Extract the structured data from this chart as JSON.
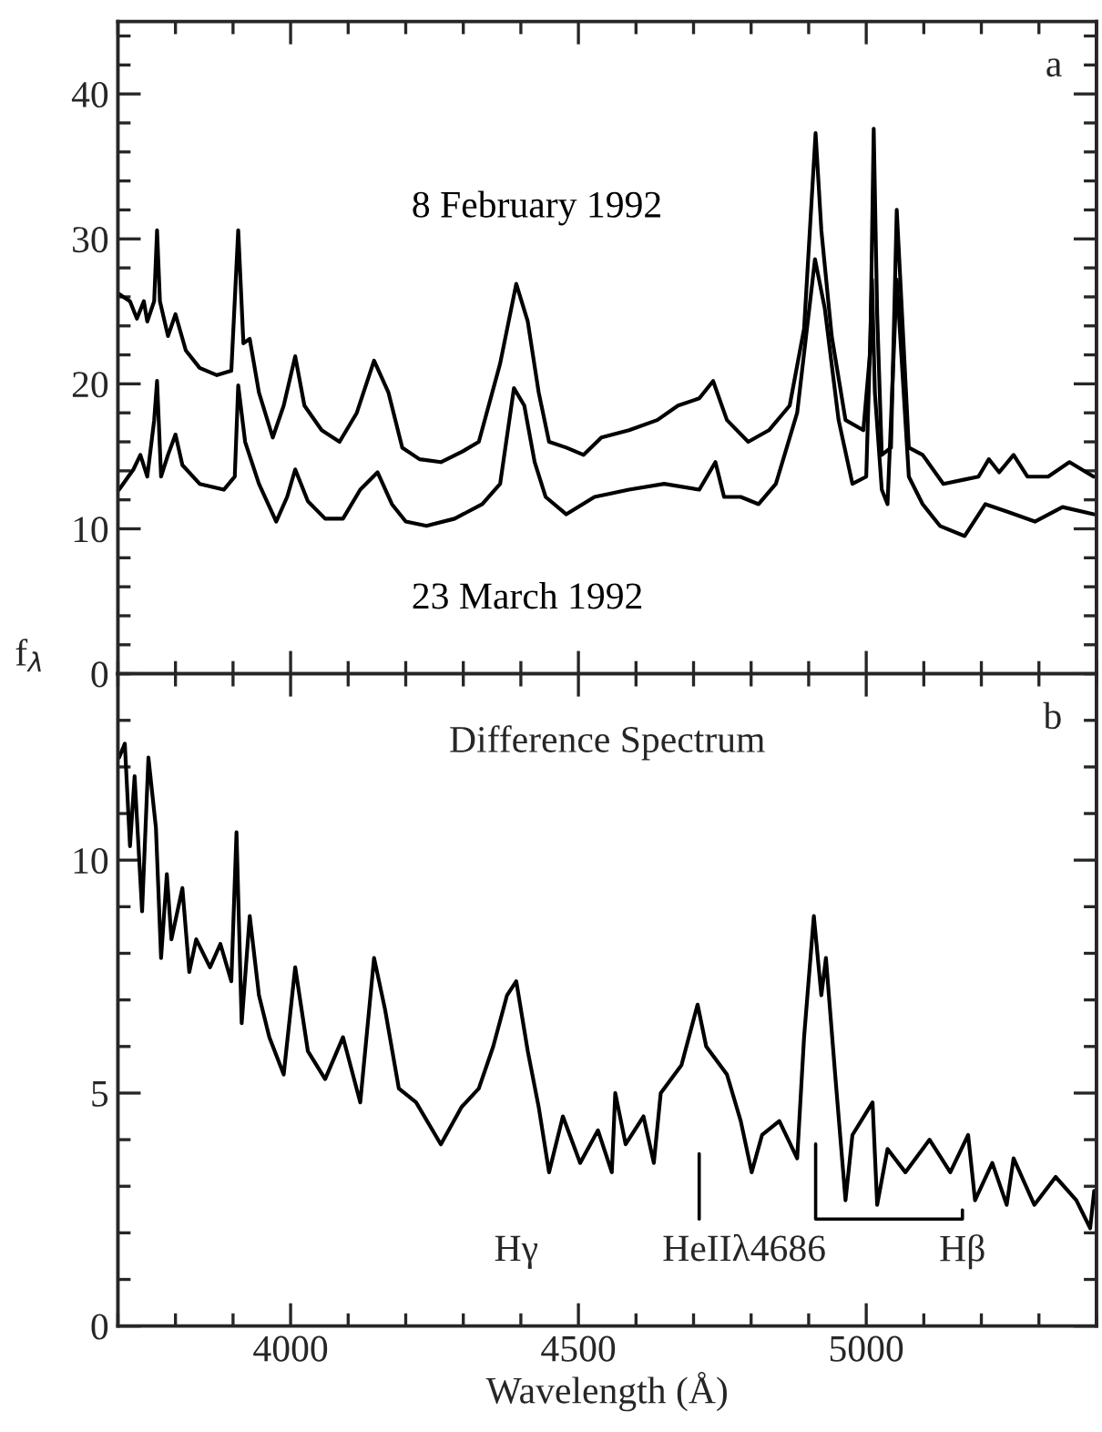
{
  "chart_data": [
    {
      "type": "line",
      "ylabel": "f$_{λ}$",
      "annotations": [
        "a"
      ],
      "tick_labels": "y",
      "xlim": [
        3700,
        5400
      ],
      "xticks": [
        {
          "value": 3700,
          "label": null
        },
        {
          "value": 3800,
          "label": null
        },
        {
          "value": 3900,
          "label": null
        },
        4000,
        {
          "value": 4100,
          "label": null
        },
        {
          "value": 4200,
          "label": null
        },
        {
          "value": 4300,
          "label": null
        },
        {
          "value": 4400,
          "label": null
        },
        4500,
        {
          "value": 4600,
          "label": null
        },
        {
          "value": 4700,
          "label": null
        },
        {
          "value": 4800,
          "label": null
        },
        {
          "value": 4900,
          "label": null
        },
        5000,
        {
          "value": 5100,
          "label": null
        },
        {
          "value": 5200,
          "label": null
        },
        {
          "value": 5300,
          "label": null
        },
        {
          "value": 5400,
          "label": null
        }
      ],
      "ylim": [
        0,
        45
      ],
      "yticks": [
        0,
        {
          "value": 2,
          "label": null
        },
        {
          "value": 4,
          "label": null
        },
        {
          "value": 6,
          "label": null
        },
        {
          "value": 8,
          "label": null
        },
        10,
        {
          "value": 12,
          "label": null
        },
        {
          "value": 14,
          "label": null
        },
        {
          "value": 16,
          "label": null
        },
        {
          "value": 18,
          "label": null
        },
        20,
        {
          "value": 22,
          "label": null
        },
        {
          "value": 24,
          "label": null
        },
        {
          "value": 26,
          "label": null
        },
        {
          "value": 28,
          "label": null
        },
        30,
        {
          "value": 32,
          "label": null
        },
        {
          "value": 34,
          "label": null
        },
        {
          "value": 36,
          "label": null
        },
        {
          "value": 38,
          "label": null
        },
        40,
        {
          "value": 42,
          "label": null
        },
        {
          "value": 44,
          "label": null
        }
      ],
      "line_style": "solid",
      "marker": "none",
      "series": [
        {
          "name": "8 February 1992",
          "color": "#000000",
          "x": [
            3702,
            3721,
            3733,
            3745,
            3751,
            3763,
            3768,
            3773,
            3787,
            3800,
            3818,
            3842,
            3872,
            3897,
            3909,
            3918,
            3929,
            3945,
            3969,
            3988,
            4008,
            4024,
            4054,
            4085,
            4115,
            4145,
            4170,
            4194,
            4224,
            4261,
            4297,
            4327,
            4364,
            4392,
            4412,
            4431,
            4449,
            4479,
            4509,
            4540,
            4588,
            4637,
            4673,
            4710,
            4734,
            4758,
            4795,
            4831,
            4867,
            4892,
            4912,
            4922,
            4940,
            4964,
            4995,
            5007,
            5013,
            5019,
            5027,
            5043,
            5053,
            5059,
            5067,
            5074,
            5098,
            5134,
            5171,
            5195,
            5213,
            5231,
            5256,
            5280,
            5316,
            5353,
            5395
          ],
          "values": [
            26.2,
            25.7,
            24.5,
            25.7,
            24.3,
            25.7,
            30.6,
            25.7,
            23.3,
            24.8,
            22.3,
            21.1,
            20.6,
            20.9,
            30.6,
            22.8,
            23.1,
            19.4,
            16.3,
            18.5,
            21.9,
            18.5,
            16.8,
            16.0,
            18.0,
            21.6,
            19.4,
            15.6,
            14.8,
            14.6,
            15.3,
            16.0,
            21.4,
            26.9,
            24.3,
            19.4,
            16.0,
            15.6,
            15.1,
            16.3,
            16.8,
            17.5,
            18.5,
            19.0,
            20.2,
            17.5,
            16.0,
            16.8,
            18.5,
            23.8,
            37.3,
            30.6,
            23.3,
            17.5,
            16.8,
            22.3,
            37.6,
            24.8,
            15.1,
            15.6,
            32.0,
            null,
            null,
            15.6,
            15.1,
            13.1,
            13.4,
            13.6,
            14.8,
            13.9,
            15.1,
            13.6,
            13.6,
            14.6,
            13.6
          ]
        },
        {
          "name": "23 March 1992",
          "color": "#000000",
          "x": [
            3702,
            3727,
            3739,
            3751,
            3763,
            3768,
            3775,
            3787,
            3800,
            3812,
            3842,
            3884,
            3903,
            3909,
            3921,
            3945,
            3975,
            3994,
            4008,
            4030,
            4060,
            4091,
            4121,
            4151,
            4176,
            4200,
            4236,
            4285,
            4333,
            4364,
            4388,
            4406,
            4424,
            4443,
            4479,
            4528,
            4588,
            4649,
            4710,
            4738,
            4753,
            4782,
            4813,
            4843,
            4880,
            4911,
            4928,
            4952,
            4976,
            5000,
            5010,
            5015,
            5027,
            5037,
            5053,
            5059,
            5067,
            5074,
            5098,
            5128,
            5171,
            5207,
            5244,
            5293,
            5341,
            5395
          ],
          "values": [
            12.7,
            14.1,
            15.1,
            13.6,
            17.5,
            20.2,
            13.6,
            15.1,
            16.5,
            14.4,
            13.1,
            12.7,
            13.6,
            19.9,
            16.0,
            13.1,
            10.5,
            12.2,
            14.1,
            11.9,
            10.7,
            10.7,
            12.7,
            13.9,
            11.7,
            10.5,
            10.2,
            10.7,
            11.7,
            13.1,
            19.7,
            18.5,
            14.6,
            12.2,
            11.0,
            12.2,
            12.7,
            13.1,
            12.7,
            14.6,
            12.2,
            12.2,
            11.7,
            13.1,
            18.0,
            28.6,
            25.2,
            17.5,
            13.1,
            13.6,
            27.2,
            19.4,
            12.7,
            11.7,
            27.2,
            null,
            null,
            13.6,
            11.7,
            10.2,
            9.5,
            11.7,
            11.2,
            10.5,
            11.5,
            11.0
          ]
        }
      ]
    },
    {
      "type": "line",
      "title": "Difference Spectrum",
      "xlabel": "Wavelength (Å)",
      "annotations": [
        "b",
        "Hγ",
        "HeIIλ4686",
        "Hβ"
      ],
      "xlim": [
        3700,
        5400
      ],
      "xticks": [
        {
          "value": 3700,
          "label": null
        },
        {
          "value": 3800,
          "label": null
        },
        {
          "value": 3900,
          "label": null
        },
        {
          "value": 4000,
          "label": "4000"
        },
        {
          "value": 4100,
          "label": null
        },
        {
          "value": 4200,
          "label": null
        },
        {
          "value": 4300,
          "label": null
        },
        {
          "value": 4400,
          "label": null
        },
        {
          "value": 4500,
          "label": "4500"
        },
        {
          "value": 4600,
          "label": null
        },
        {
          "value": 4700,
          "label": null
        },
        {
          "value": 4800,
          "label": null
        },
        {
          "value": 4900,
          "label": null
        },
        {
          "value": 5000,
          "label": "5000"
        },
        {
          "value": 5100,
          "label": null
        },
        {
          "value": 5200,
          "label": null
        },
        {
          "value": 5300,
          "label": null
        },
        {
          "value": 5400,
          "label": null
        }
      ],
      "ylim": [
        0,
        14
      ],
      "yticks": [
        0,
        {
          "value": 1,
          "label": null
        },
        {
          "value": 2,
          "label": null
        },
        {
          "value": 3,
          "label": null
        },
        {
          "value": 4,
          "label": null
        },
        5,
        {
          "value": 6,
          "label": null
        },
        {
          "value": 7,
          "label": null
        },
        {
          "value": 8,
          "label": null
        },
        {
          "value": 9,
          "label": null
        },
        10,
        {
          "value": 11,
          "label": null
        },
        {
          "value": 12,
          "label": null
        },
        {
          "value": 13,
          "label": null
        },
        {
          "value": 14,
          "label": null
        }
      ],
      "line_style": "solid",
      "marker": "none",
      "series": [
        {
          "color": "#000000",
          "x": [
            3702,
            3712,
            3721,
            3729,
            3742,
            3753,
            3766,
            3775,
            3785,
            3793,
            3812,
            3824,
            3836,
            3860,
            3878,
            3897,
            3906,
            3915,
            3929,
            3945,
            3963,
            3988,
            4008,
            4030,
            4060,
            4091,
            4121,
            4145,
            4164,
            4188,
            4218,
            4261,
            4297,
            4327,
            4352,
            4376,
            4392,
            4412,
            4431,
            4449,
            4473,
            4503,
            4534,
            4558,
            4564,
            4582,
            4613,
            4631,
            4643,
            4679,
            4707,
            4722,
            4758,
            4782,
            4801,
            4819,
            4849,
            4880,
            4892,
            4909,
            4922,
            4930,
            4946,
            4964,
            4976,
            5011,
            5019,
            5037,
            5068,
            5110,
            5146,
            5177,
            5189,
            5219,
            5244,
            5256,
            5292,
            5329,
            5365,
            5389,
            5396
          ],
          "values": [
            12.2,
            12.5,
            10.3,
            11.8,
            8.9,
            12.2,
            10.7,
            7.9,
            9.7,
            8.3,
            9.4,
            7.6,
            8.3,
            7.7,
            8.2,
            7.4,
            10.6,
            6.5,
            8.8,
            7.1,
            6.2,
            5.4,
            7.7,
            5.9,
            5.3,
            6.2,
            4.8,
            7.9,
            6.8,
            5.1,
            4.8,
            3.9,
            4.7,
            5.1,
            6.0,
            7.1,
            7.4,
            5.9,
            4.7,
            3.3,
            4.5,
            3.5,
            4.2,
            3.3,
            5.0,
            3.9,
            4.5,
            3.5,
            5.0,
            5.6,
            6.9,
            6.0,
            5.4,
            4.4,
            3.3,
            4.1,
            4.4,
            3.6,
            6.2,
            8.8,
            7.1,
            7.9,
            5.4,
            2.7,
            4.1,
            4.8,
            2.6,
            3.8,
            3.3,
            4.0,
            3.3,
            4.1,
            2.7,
            3.5,
            2.6,
            3.6,
            2.6,
            3.2,
            2.7,
            2.1,
            2.9
          ]
        }
      ]
    }
  ]
}
